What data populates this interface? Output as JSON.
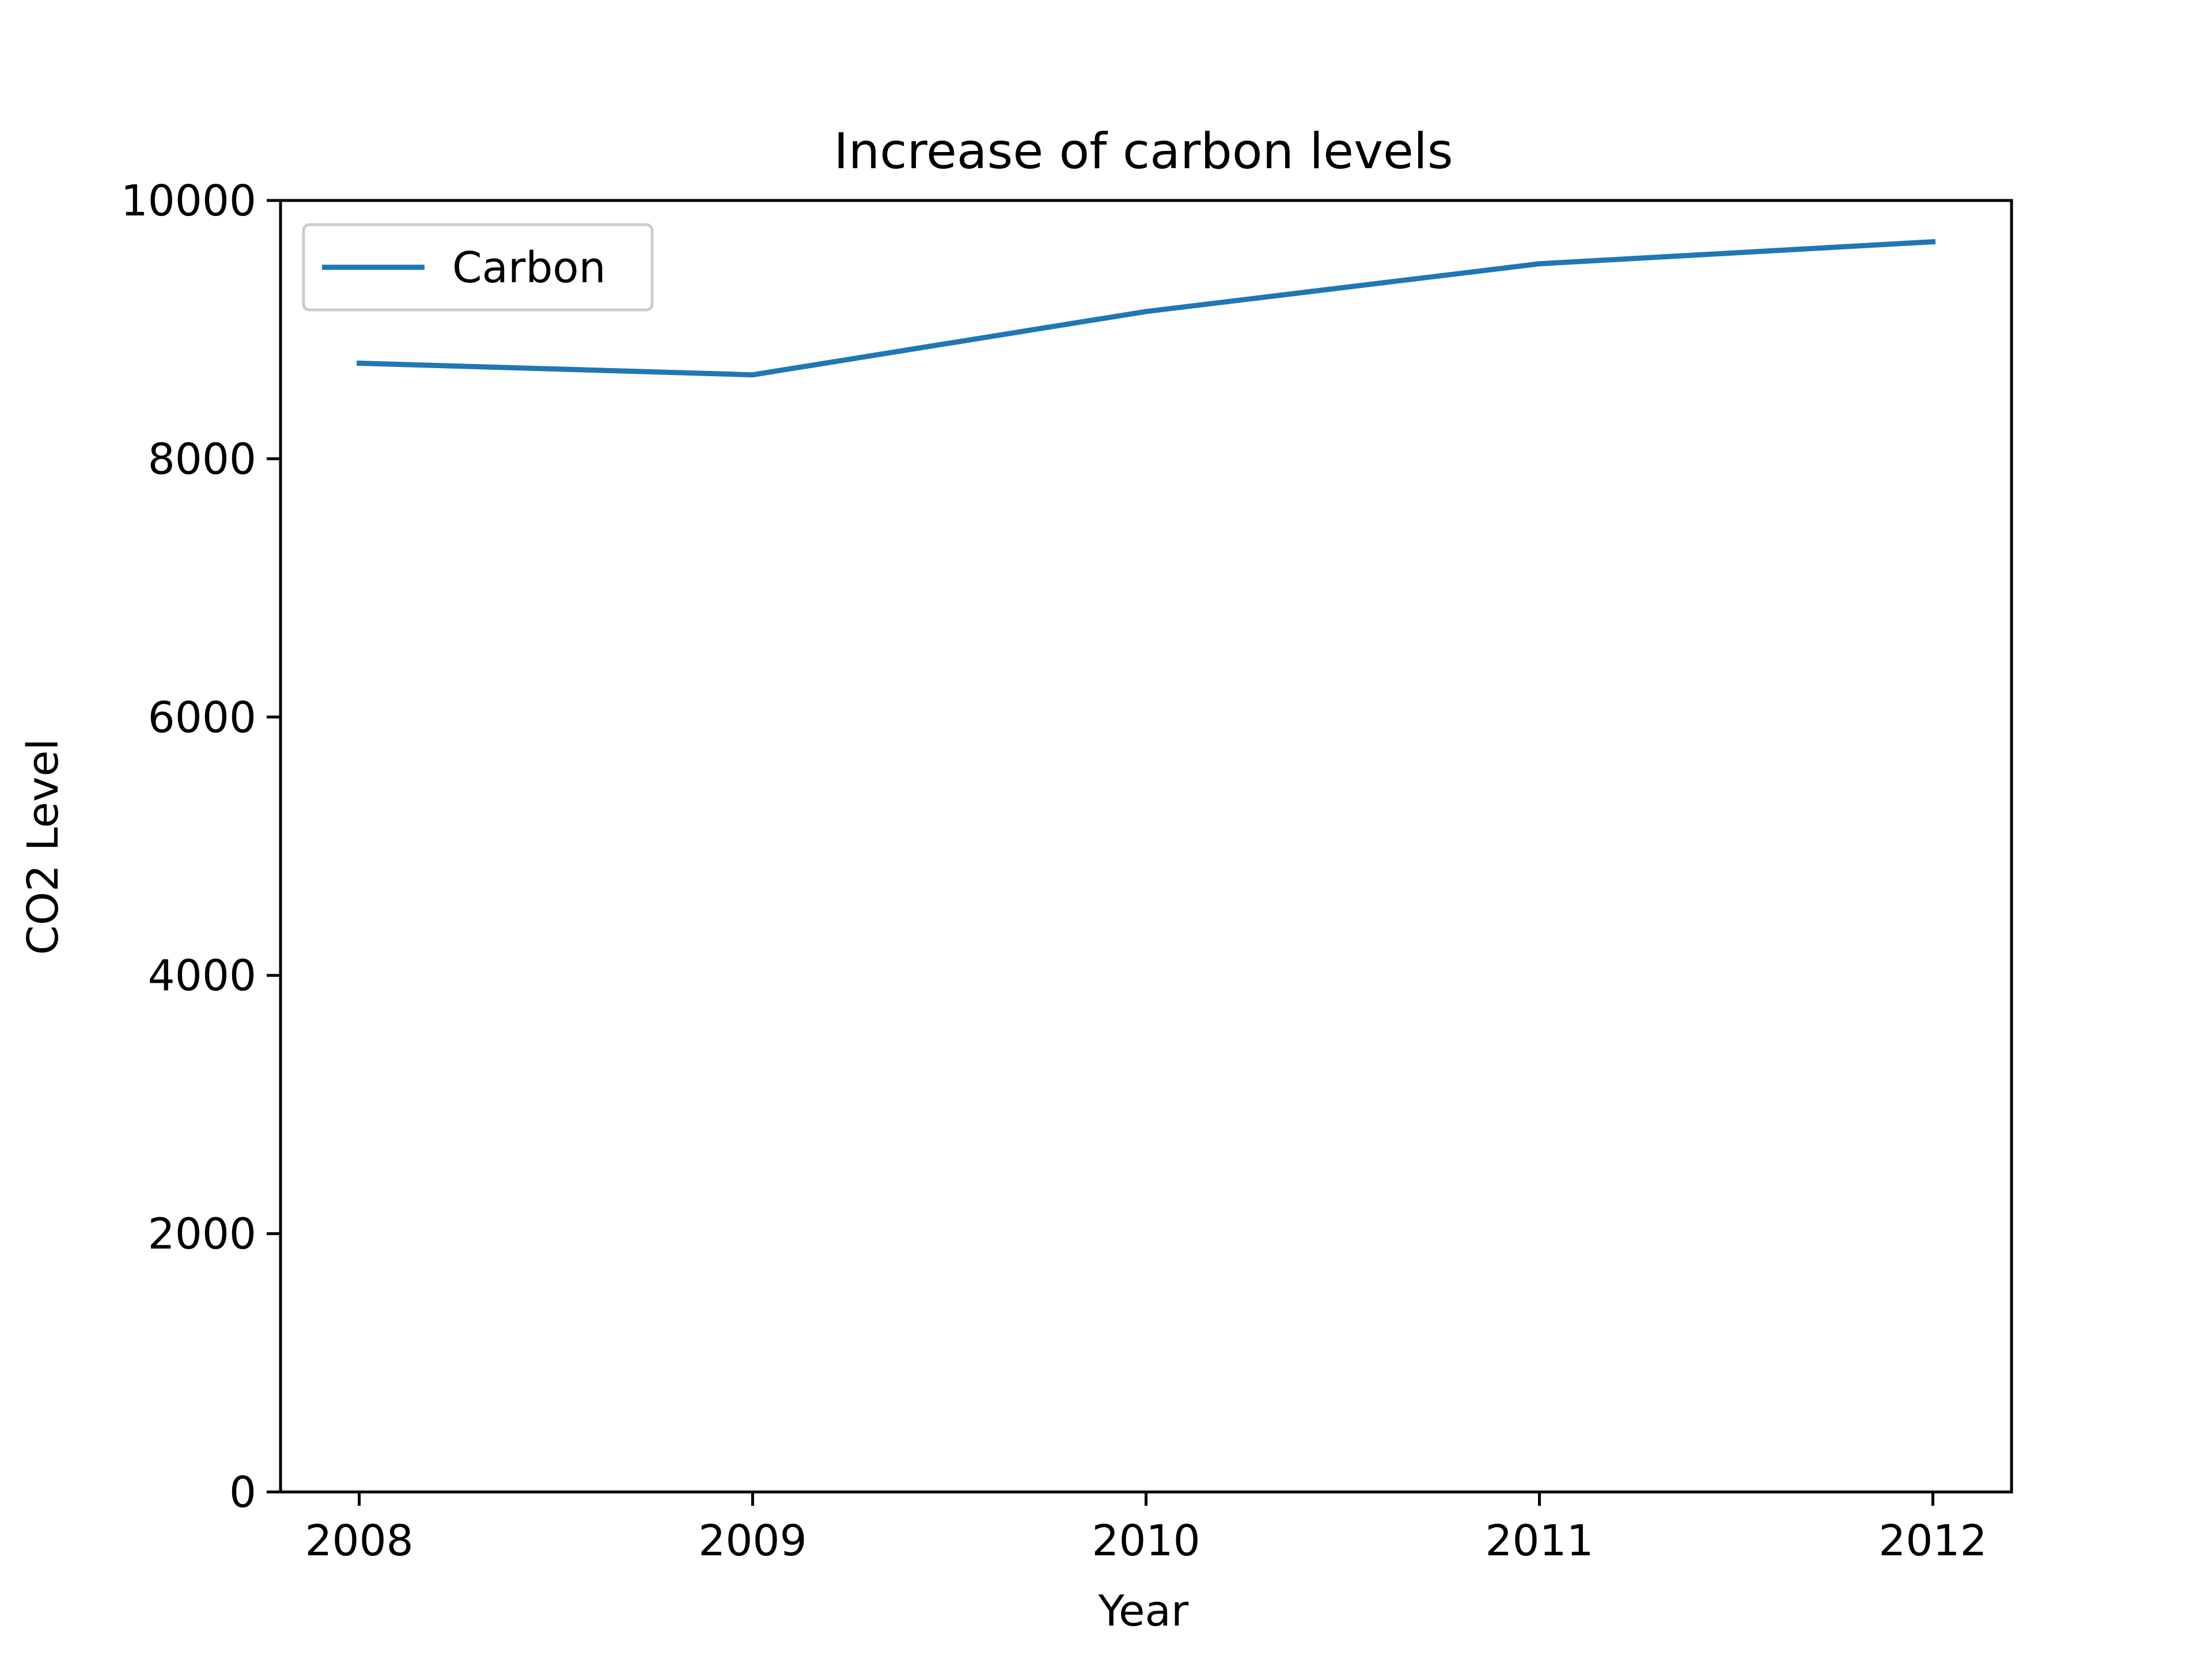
{
  "chart_data": {
    "type": "line",
    "title": "Increase of carbon levels",
    "xlabel": "Year",
    "ylabel": "CO2 Level",
    "x": [
      2008,
      2009,
      2010,
      2011,
      2012
    ],
    "series": [
      {
        "name": "Carbon",
        "values": [
          8740,
          8650,
          9140,
          9510,
          9680
        ],
        "color": "#1f77b4"
      }
    ],
    "xlim": [
      2007.8,
      2012.2
    ],
    "ylim": [
      0,
      10000
    ],
    "xticks": [
      "2008",
      "2009",
      "2010",
      "2011",
      "2012"
    ],
    "yticks": [
      "0",
      "2000",
      "4000",
      "6000",
      "8000",
      "10000"
    ],
    "grid": false,
    "legend_position": "top-left"
  }
}
